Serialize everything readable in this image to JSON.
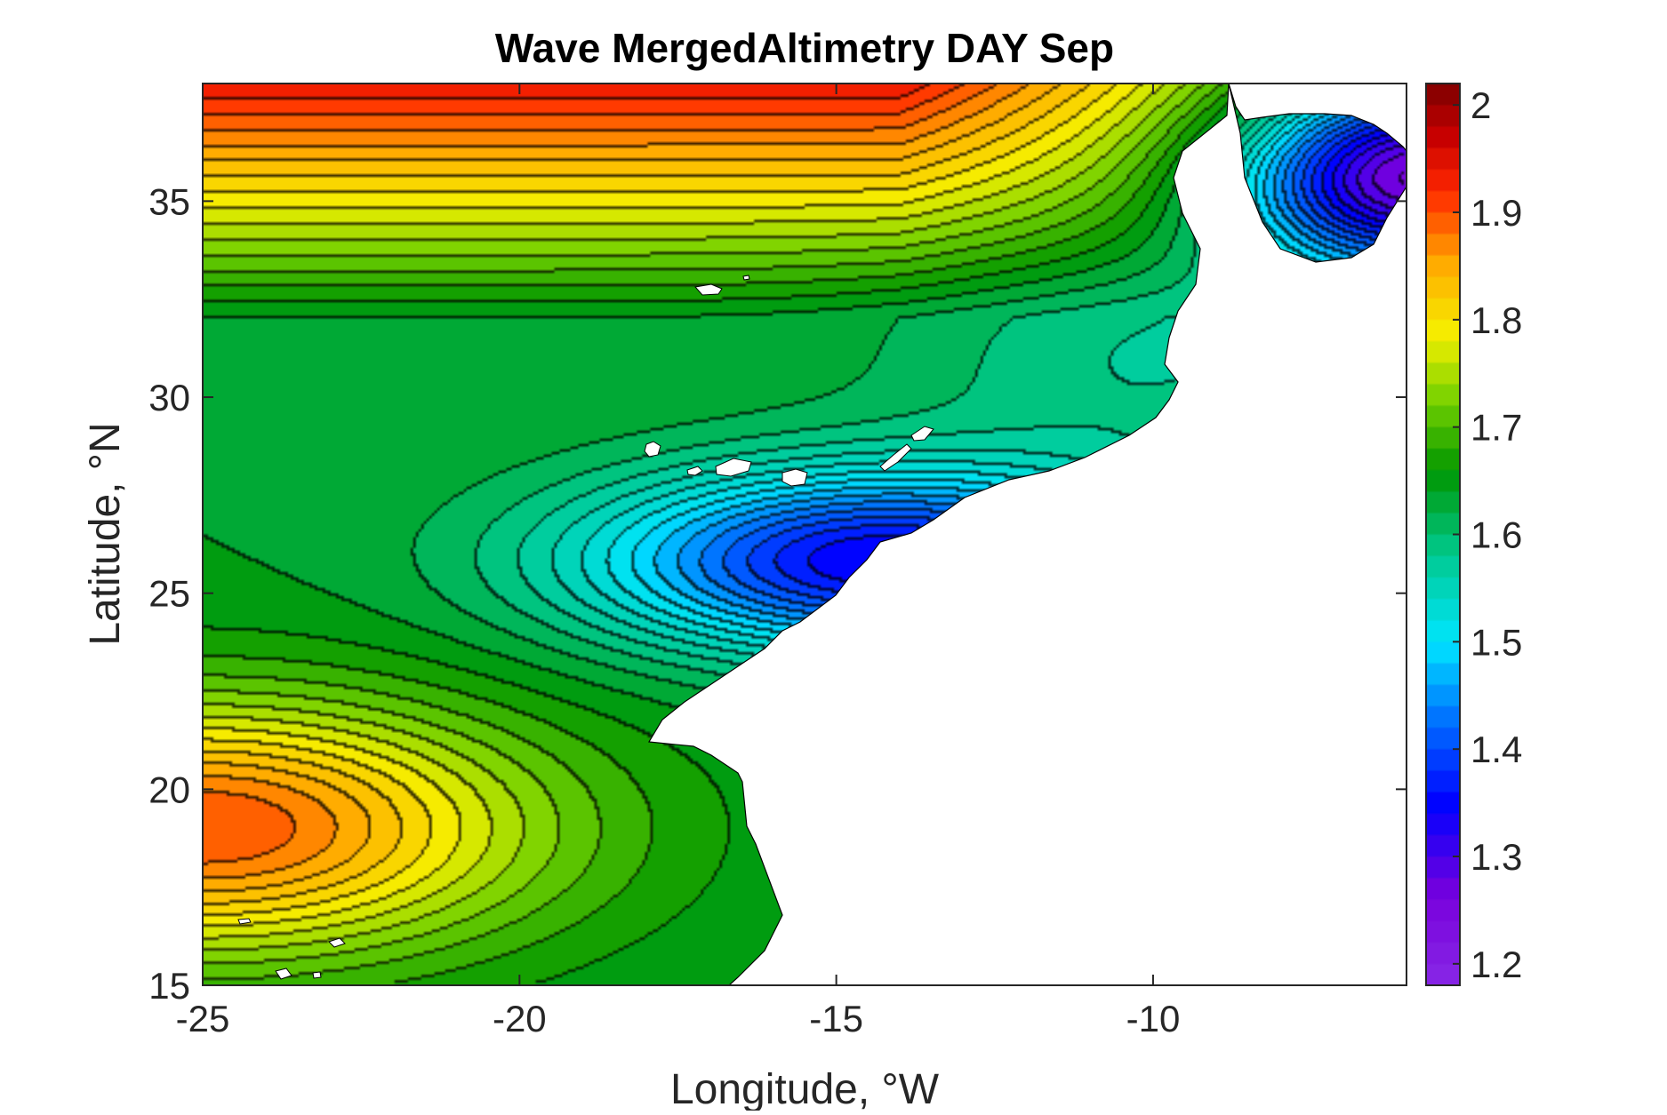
{
  "chart_data": {
    "type": "heatmap",
    "title": "Wave MergedAltimetry DAY Sep",
    "xlabel": "Longitude, °W",
    "ylabel": "Latitude, °N",
    "xlim": [
      -25,
      -6
    ],
    "ylim": [
      15,
      38
    ],
    "xticks": [
      "-25",
      "-20",
      "-15",
      "-10"
    ],
    "xtick_values": [
      -25,
      -20,
      -15,
      -10
    ],
    "yticks": [
      "15",
      "20",
      "25",
      "30",
      "35"
    ],
    "ytick_values": [
      15,
      20,
      25,
      30,
      35
    ],
    "colorbar": {
      "range": [
        1.18,
        2.02
      ],
      "ticks": [
        "1.2",
        "1.3",
        "1.4",
        "1.5",
        "1.6",
        "1.7",
        "1.8",
        "1.9",
        "2"
      ],
      "tick_values": [
        1.2,
        1.3,
        1.4,
        1.5,
        1.6,
        1.7,
        1.8,
        1.9,
        2.0
      ],
      "colormap": "jet-like",
      "placement": "right"
    },
    "contour_levels_step": 0.02,
    "land_color": "#ffffff",
    "field_features": [
      {
        "lon": -20,
        "lat": 37.7,
        "value": 2.0
      },
      {
        "lon": -25,
        "lat": 19.0,
        "value": 1.88
      },
      {
        "lon": -15,
        "lat": 25.5,
        "value": 1.32
      },
      {
        "lon": -6.5,
        "lat": 35.6,
        "value": 1.28
      },
      {
        "lon": -21,
        "lat": 27.0,
        "value": 1.6
      },
      {
        "lon": -17,
        "lat": 22.5,
        "value": 1.66
      }
    ]
  }
}
